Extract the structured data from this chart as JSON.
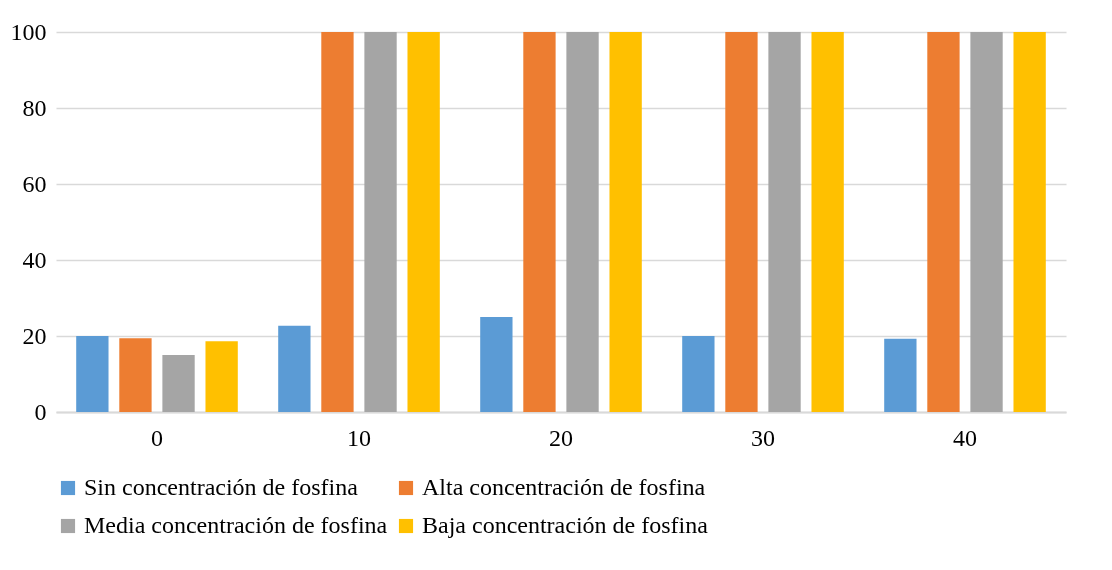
{
  "chart_data": {
    "type": "bar",
    "categories": [
      "0",
      "10",
      "20",
      "30",
      "40"
    ],
    "series": [
      {
        "name": "Sin concentración de fosfina",
        "color": "#5b9bd5",
        "values": [
          20,
          22.7,
          25,
          20,
          19.3
        ]
      },
      {
        "name": "Alta concentración de fosfina",
        "color": "#ed7d31",
        "values": [
          19.4,
          100,
          100,
          100,
          100
        ]
      },
      {
        "name": "Media concentración de fosfina",
        "color": "#a5a5a5",
        "values": [
          15,
          100,
          100,
          100,
          100
        ]
      },
      {
        "name": "Baja concentración de fosfina",
        "color": "#ffc000",
        "values": [
          18.6,
          100,
          100,
          100,
          100
        ]
      }
    ],
    "ylim": [
      0,
      100
    ],
    "yticks": [
      0,
      20,
      40,
      60,
      80,
      100
    ],
    "grid": "y",
    "legend": "bottom"
  }
}
